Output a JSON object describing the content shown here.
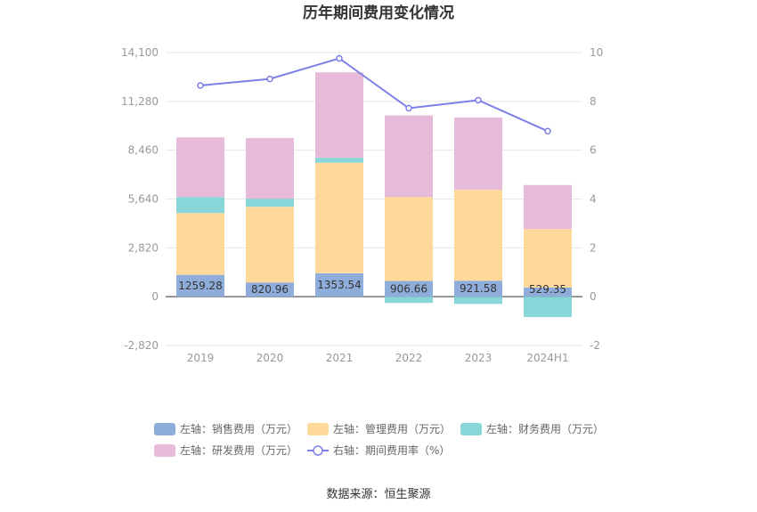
{
  "chart_data": {
    "type": "bar",
    "title": "历年期间费用变化情况",
    "categories": [
      "2019",
      "2020",
      "2021",
      "2022",
      "2023",
      "2024H1"
    ],
    "series": [
      {
        "name": "左轴：销售费用（万元）",
        "axis": "left",
        "stack": "cost",
        "color": "#8eadda",
        "values": [
          1259.28,
          820.96,
          1353.54,
          906.66,
          921.58,
          529.35
        ],
        "labels": [
          "1259.28",
          "820.96",
          "1353.54",
          "906.66",
          "921.58",
          "529.35"
        ]
      },
      {
        "name": "左轴：管理费用（万元）",
        "axis": "left",
        "stack": "cost",
        "color": "#ffd99a",
        "values": [
          3570,
          4370,
          6380,
          4840,
          5250,
          3380
        ]
      },
      {
        "name": "左轴：财务费用（万元）",
        "axis": "left",
        "stack": "cost",
        "color": "#88d6d8",
        "values": [
          930,
          470,
          290,
          -360,
          -420,
          -1180
        ]
      },
      {
        "name": "左轴：研发费用（万元）",
        "axis": "left",
        "stack": "cost",
        "color": "#e8bada",
        "values": [
          3440,
          3500,
          4930,
          4720,
          4180,
          2540
        ]
      },
      {
        "name": "右轴：期间费用率（%）",
        "axis": "right",
        "type": "line",
        "color": "#7b7fe6",
        "values": [
          8.65,
          8.92,
          9.76,
          7.72,
          8.05,
          6.78
        ]
      }
    ],
    "left_axis": {
      "min": -2820,
      "max": 14100,
      "ticks": [
        -2820,
        0,
        2820,
        5640,
        8460,
        11280,
        14100
      ],
      "tick_labels": [
        "-2,820",
        "0",
        "2,820",
        "5,640",
        "8,460",
        "11,280",
        "14,100"
      ]
    },
    "right_axis": {
      "min": -2,
      "max": 10,
      "ticks": [
        -2,
        0,
        2,
        4,
        6,
        8,
        10
      ],
      "tick_labels": [
        "-2",
        "0",
        "2",
        "4",
        "6",
        "8",
        "10"
      ]
    },
    "grid": true,
    "legend_position": "bottom"
  },
  "source": "数据来源：恒生聚源"
}
